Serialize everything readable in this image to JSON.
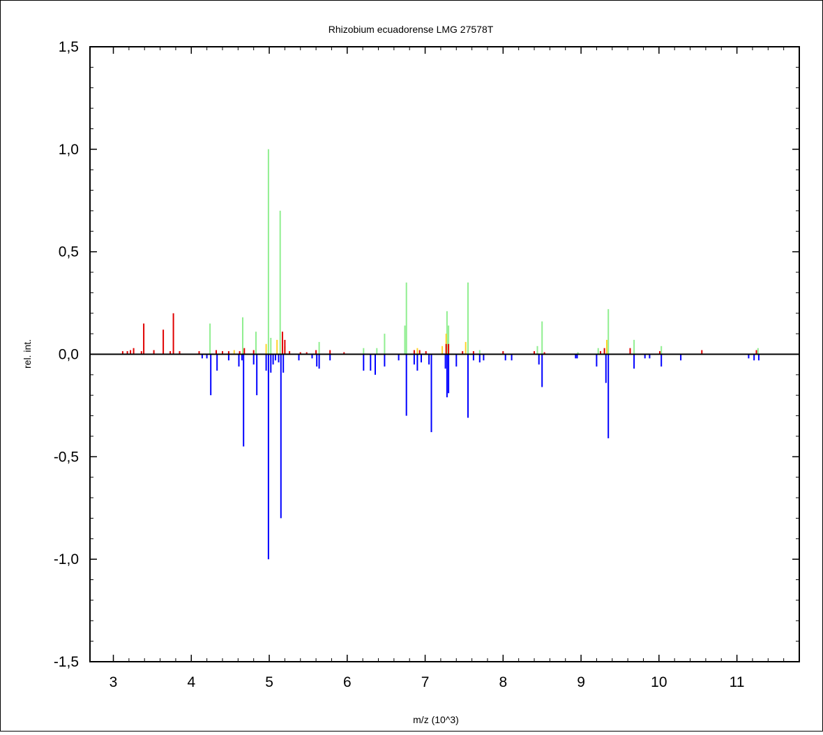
{
  "chart_data": {
    "type": "bar",
    "title": "Rhizobium ecuadorense LMG 27578T",
    "xlabel": "m/z (10^3)",
    "ylabel": "rel. int.",
    "xlim": [
      2.7,
      11.8
    ],
    "ylim": [
      -1.5,
      1.5
    ],
    "x_ticks": [
      "3",
      "4",
      "5",
      "6",
      "7",
      "8",
      "9",
      "10",
      "11"
    ],
    "y_ticks": [
      "1,5",
      "1,0",
      "0,5",
      "0,0",
      "-0,5",
      "-1,0",
      "-1,5"
    ],
    "grid": false,
    "legend": "none",
    "colors": {
      "green": "#90ee90",
      "yellow": "#ffd42a",
      "red": "#e00000",
      "blue": "#0000ff",
      "frame": "#000000",
      "zero_line": "#000000"
    },
    "series": [
      {
        "color_key": "green",
        "x": [
          4.24,
          4.66,
          4.83,
          4.99,
          5.02,
          5.14,
          5.64,
          6.21,
          6.38,
          6.48,
          6.74,
          6.76,
          7.28,
          7.3,
          7.55,
          7.7,
          8.44,
          8.5,
          8.96,
          9.22,
          9.35,
          9.68,
          10.03,
          11.27
        ],
        "values": [
          0.15,
          0.18,
          0.11,
          1.0,
          0.08,
          0.7,
          0.06,
          0.03,
          0.03,
          0.1,
          0.14,
          0.35,
          0.21,
          0.14,
          0.35,
          0.02,
          0.04,
          0.16,
          0.01,
          0.03,
          0.22,
          0.07,
          0.04,
          0.03
        ]
      },
      {
        "color_key": "yellow",
        "x": [
          4.55,
          4.96,
          5.1,
          5.2,
          6.9,
          7.22,
          7.27,
          7.52,
          9.33
        ],
        "values": [
          0.02,
          0.05,
          0.07,
          0.04,
          0.03,
          0.04,
          0.1,
          0.06,
          0.07
        ]
      },
      {
        "color_key": "red",
        "x": [
          3.12,
          3.18,
          3.22,
          3.26,
          3.36,
          3.39,
          3.52,
          3.64,
          3.73,
          3.77,
          3.85,
          4.1,
          4.32,
          4.4,
          4.48,
          4.62,
          4.68,
          4.8,
          5.17,
          5.2,
          5.26,
          5.4,
          5.48,
          5.6,
          5.78,
          5.96,
          6.86,
          6.93,
          7.01,
          7.27,
          7.3,
          7.48,
          7.62,
          8.0,
          8.4,
          8.53,
          9.25,
          9.3,
          9.63,
          10.01,
          10.55,
          11.25
        ],
        "values": [
          0.015,
          0.015,
          0.02,
          0.03,
          0.015,
          0.15,
          0.02,
          0.12,
          0.015,
          0.2,
          0.015,
          0.015,
          0.02,
          0.015,
          0.015,
          0.015,
          0.03,
          0.02,
          0.11,
          0.07,
          0.015,
          0.01,
          0.01,
          0.02,
          0.02,
          0.01,
          0.02,
          0.02,
          0.015,
          0.05,
          0.05,
          0.015,
          0.015,
          0.015,
          0.015,
          0.01,
          0.015,
          0.03,
          0.03,
          0.015,
          0.02,
          0.02
        ]
      },
      {
        "color_key": "blue",
        "x": [
          4.14,
          4.2,
          4.25,
          4.33,
          4.48,
          4.61,
          4.65,
          4.67,
          4.8,
          4.84,
          4.96,
          4.99,
          5.02,
          5.05,
          5.08,
          5.12,
          5.15,
          5.18,
          5.38,
          5.55,
          5.61,
          5.64,
          5.78,
          6.21,
          6.3,
          6.36,
          6.48,
          6.66,
          6.76,
          6.86,
          6.9,
          6.95,
          7.05,
          7.08,
          7.26,
          7.28,
          7.3,
          7.4,
          7.55,
          7.62,
          7.7,
          7.75,
          8.03,
          8.11,
          8.46,
          8.5,
          8.93,
          8.95,
          9.2,
          9.32,
          9.35,
          9.68,
          9.82,
          9.88,
          10.03,
          10.28,
          11.15,
          11.22,
          11.28
        ],
        "values": [
          -0.02,
          -0.02,
          -0.2,
          -0.08,
          -0.03,
          -0.06,
          -0.03,
          -0.45,
          -0.05,
          -0.2,
          -0.08,
          -1.0,
          -0.09,
          -0.05,
          -0.03,
          -0.04,
          -0.8,
          -0.09,
          -0.03,
          -0.02,
          -0.06,
          -0.07,
          -0.03,
          -0.08,
          -0.08,
          -0.1,
          -0.06,
          -0.03,
          -0.3,
          -0.05,
          -0.08,
          -0.04,
          -0.05,
          -0.38,
          -0.07,
          -0.21,
          -0.19,
          -0.06,
          -0.31,
          -0.03,
          -0.04,
          -0.03,
          -0.03,
          -0.03,
          -0.05,
          -0.16,
          -0.02,
          -0.02,
          -0.06,
          -0.14,
          -0.41,
          -0.07,
          -0.02,
          -0.02,
          -0.06,
          -0.03,
          -0.02,
          -0.03,
          -0.03
        ]
      }
    ]
  }
}
